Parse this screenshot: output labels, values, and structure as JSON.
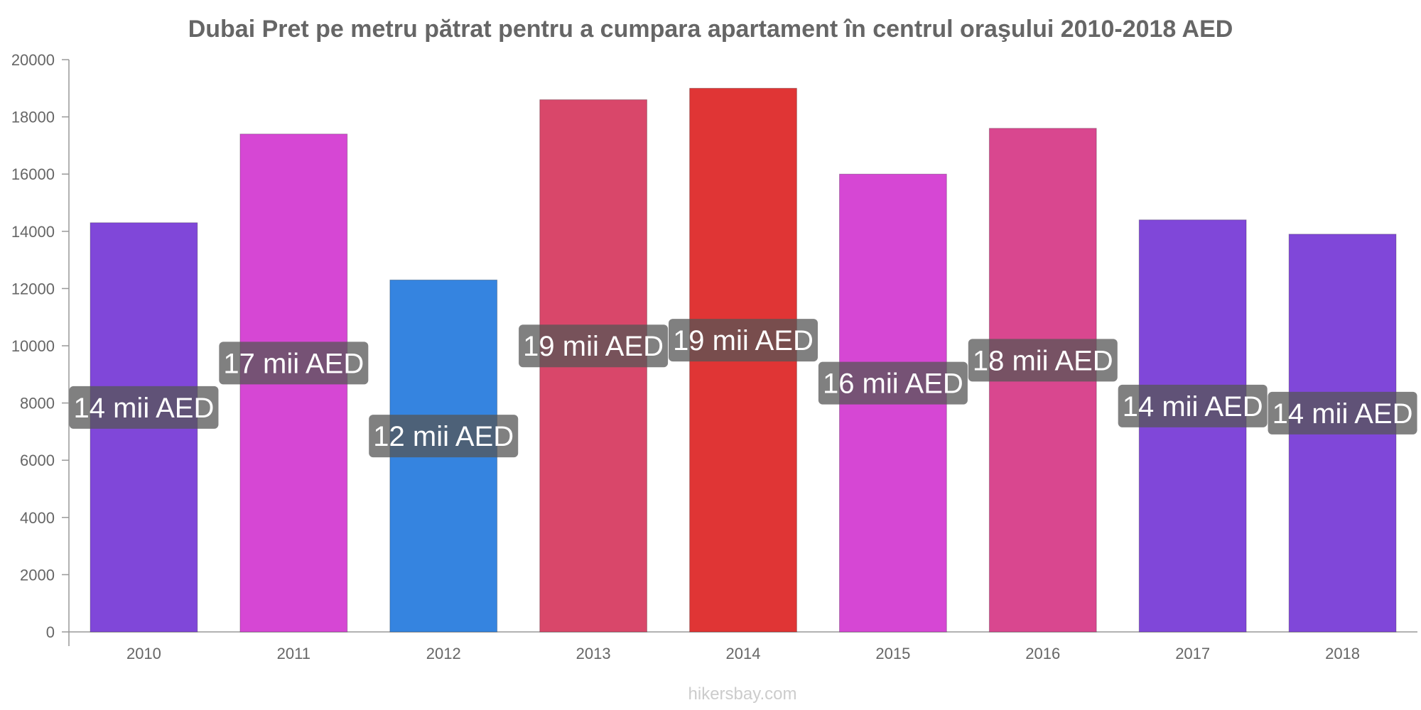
{
  "chart_data": {
    "type": "bar",
    "title": "Dubai Pret pe metru pătrat pentru a cumpara apartament în centrul oraşului 2010-2018 AED",
    "xlabel": "",
    "ylabel": "",
    "ylim": [
      0,
      20000
    ],
    "yticks": [
      "0",
      "2000",
      "4000",
      "6000",
      "8000",
      "10000",
      "12000",
      "14000",
      "16000",
      "18000",
      "20000"
    ],
    "categories": [
      "2010",
      "2011",
      "2012",
      "2013",
      "2014",
      "2015",
      "2016",
      "2017",
      "2018"
    ],
    "values": [
      14300,
      17400,
      12300,
      18600,
      19000,
      16000,
      17600,
      14400,
      13900
    ],
    "data_labels": [
      "14 mii AED",
      "17 mii AED",
      "12 mii AED",
      "19 mii AED",
      "19 mii AED",
      "16 mii AED",
      "18 mii AED",
      "14 mii AED",
      "14 mii AED"
    ],
    "colors": [
      "#8047d9",
      "#d647d4",
      "#3584e0",
      "#d9476a",
      "#e03535",
      "#d647d4",
      "#d9478f",
      "#8047d9",
      "#8047d9"
    ],
    "label_bg_color": "#555555",
    "grid": false,
    "legend": "none"
  },
  "watermark": "hikersbay.com"
}
